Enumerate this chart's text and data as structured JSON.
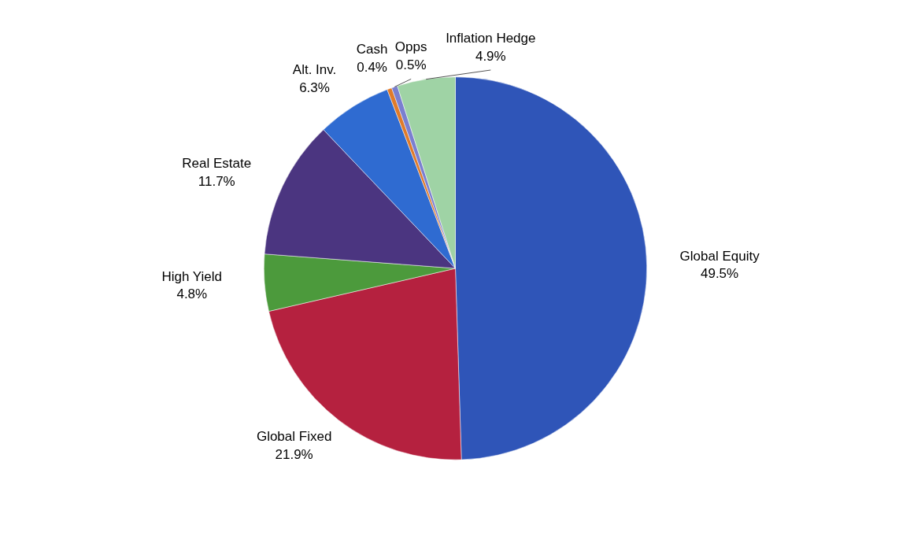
{
  "chart_data": {
    "type": "pie",
    "categories": [
      "Global Equity",
      "Global Fixed",
      "High Yield",
      "Real Estate",
      "Alt. Inv.",
      "Cash",
      "Opps",
      "Inflation Hedge"
    ],
    "values": [
      49.5,
      21.9,
      4.8,
      11.7,
      6.3,
      0.4,
      0.5,
      4.9
    ],
    "colors": [
      "#2f55b8",
      "#b5213f",
      "#4c9a3c",
      "#4b3580",
      "#2f6bd1",
      "#e07b2a",
      "#7a7fd0",
      "#9fd3a5"
    ],
    "value_labels": [
      "49.5%",
      "21.9%",
      "4.8%",
      "11.7%",
      "6.3%",
      "0.4%",
      "0.5%",
      "4.9%"
    ]
  }
}
